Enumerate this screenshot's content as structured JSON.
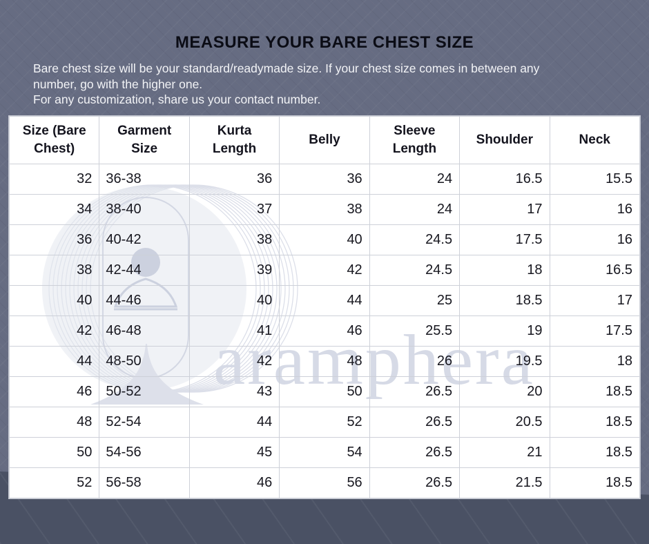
{
  "title": "MEASURE YOUR BARE CHEST SIZE",
  "subtitle": {
    "line1": "Bare chest size will be your standard/readymade size. If your chest size comes in between any",
    "line2": "number, go with the higher one.",
    "line3": "For any customization, share us your contact number."
  },
  "watermark_brand": "aramphera",
  "table": {
    "headers": [
      "Size (Bare Chest)",
      "Garment Size",
      "Kurta Length",
      "Belly",
      "Sleeve Length",
      "Shoulder",
      "Neck"
    ],
    "rows": [
      [
        "32",
        "36-38",
        "36",
        "36",
        "24",
        "16.5",
        "15.5"
      ],
      [
        "34",
        "38-40",
        "37",
        "38",
        "24",
        "17",
        "16"
      ],
      [
        "36",
        "40-42",
        "38",
        "40",
        "24.5",
        "17.5",
        "16"
      ],
      [
        "38",
        "42-44",
        "39",
        "42",
        "24.5",
        "18",
        "16.5"
      ],
      [
        "40",
        "44-46",
        "40",
        "44",
        "25",
        "18.5",
        "17"
      ],
      [
        "42",
        "46-48",
        "41",
        "46",
        "25.5",
        "19",
        "17.5"
      ],
      [
        "44",
        "48-50",
        "42",
        "48",
        "26",
        "19.5",
        "18"
      ],
      [
        "46",
        "50-52",
        "43",
        "50",
        "26.5",
        "20",
        "18.5"
      ],
      [
        "48",
        "52-54",
        "44",
        "52",
        "26.5",
        "20.5",
        "18.5"
      ],
      [
        "50",
        "54-56",
        "45",
        "54",
        "26.5",
        "21",
        "18.5"
      ],
      [
        "52",
        "56-58",
        "46",
        "56",
        "26.5",
        "21.5",
        "18.5"
      ]
    ]
  },
  "colors": {
    "wall_background": "#666c82",
    "floor_background": "#4a5164",
    "title_text": "#0b0c15",
    "subtitle_text": "#f2f3f6",
    "table_background": "#ffffff",
    "table_border": "#cdd0d8",
    "cell_text": "#17171f",
    "watermark": "#d6dae6"
  }
}
